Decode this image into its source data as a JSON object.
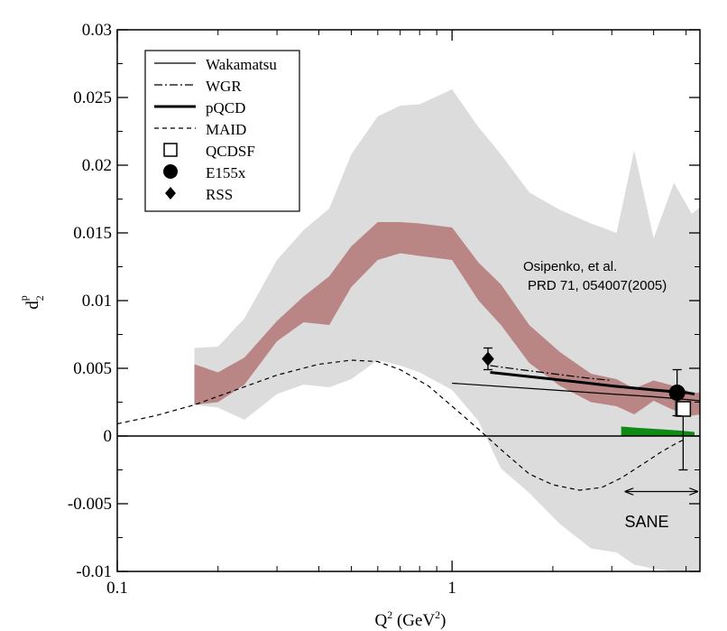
{
  "chart_data": {
    "type": "line",
    "x_scale": "log",
    "xlim": [
      0.1,
      5.5
    ],
    "ylim": [
      -0.01,
      0.03
    ],
    "xlabel": {
      "base": "Q",
      "sup": "2",
      "unit_open": " (GeV",
      "unit_sup": "2",
      "unit_close": ")"
    },
    "ylabel": {
      "base": "d",
      "sub": "2",
      "sup": "p"
    },
    "x_ticks": [
      {
        "value": 0.1,
        "label": "0.1"
      },
      {
        "value": 1,
        "label": "1"
      }
    ],
    "y_ticks": [
      {
        "value": 0.03,
        "label": "0.03"
      },
      {
        "value": 0.025,
        "label": "0.025"
      },
      {
        "value": 0.02,
        "label": "0.02"
      },
      {
        "value": 0.015,
        "label": "0.015"
      },
      {
        "value": 0.01,
        "label": "0.01"
      },
      {
        "value": 0.005,
        "label": "0.005"
      },
      {
        "value": 0,
        "label": "0"
      },
      {
        "value": -0.005,
        "label": "-0.005"
      },
      {
        "value": -0.01,
        "label": "-0.01"
      }
    ],
    "colors": {
      "grey_band": "#dcdcdc",
      "red_band": "#b98585",
      "green_band": "#0f8a14",
      "line": "#000000"
    },
    "grey_band": {
      "x": [
        0.17,
        0.2,
        0.24,
        0.3,
        0.36,
        0.43,
        0.5,
        0.6,
        0.7,
        0.8,
        1.0,
        1.2,
        1.4,
        1.7,
        2.1,
        2.6,
        3.1,
        3.5,
        4.0,
        4.6,
        5.2,
        5.5
      ],
      "upper": [
        0.0065,
        0.0066,
        0.0087,
        0.013,
        0.0152,
        0.0168,
        0.0208,
        0.0236,
        0.0244,
        0.0245,
        0.0256,
        0.0228,
        0.0208,
        0.018,
        0.0167,
        0.0157,
        0.015,
        0.0211,
        0.0146,
        0.0187,
        0.0164,
        0.0169
      ],
      "lower": [
        0.0023,
        0.0021,
        0.0012,
        0.0031,
        0.0038,
        0.0036,
        0.0042,
        0.0056,
        0.0052,
        0.0047,
        0.0034,
        0.0011,
        -0.0024,
        -0.0042,
        -0.0065,
        -0.0083,
        -0.0086,
        -0.0095,
        -0.0098,
        -0.01,
        -0.01,
        -0.01
      ]
    },
    "red_band": {
      "x": [
        0.17,
        0.2,
        0.24,
        0.3,
        0.36,
        0.43,
        0.5,
        0.6,
        0.7,
        0.8,
        1.0,
        1.2,
        1.4,
        1.7,
        2.1,
        2.6,
        3.1,
        3.5,
        4.0,
        4.6,
        5.2,
        5.5
      ],
      "upper": [
        0.0053,
        0.0047,
        0.0058,
        0.0085,
        0.0103,
        0.0118,
        0.014,
        0.0158,
        0.0158,
        0.0157,
        0.0154,
        0.0128,
        0.0112,
        0.0082,
        0.0062,
        0.0046,
        0.0042,
        0.0035,
        0.0041,
        0.0037,
        0.0032,
        0.0032
      ],
      "lower": [
        0.0023,
        0.0025,
        0.0038,
        0.007,
        0.0084,
        0.0082,
        0.011,
        0.013,
        0.0135,
        0.0133,
        0.013,
        0.01,
        0.0082,
        0.0054,
        0.0037,
        0.0025,
        0.0022,
        0.0016,
        0.0026,
        0.0019,
        0.0015,
        0.0016
      ]
    },
    "green_band": {
      "x": [
        3.2,
        3.6,
        4.2,
        4.8,
        5.3
      ],
      "upper": [
        0.0007,
        0.0006,
        0.0005,
        0.0004,
        0.0003
      ],
      "lower": [
        0.0,
        0.0,
        0.0,
        0.0,
        0.0
      ]
    },
    "series": [
      {
        "name": "Wakamatsu",
        "style": "thin",
        "x": [
          1.0,
          2.0,
          3.0,
          4.0,
          5.0,
          5.5
        ],
        "y": [
          0.0039,
          0.0034,
          0.0031,
          0.0029,
          0.0027,
          0.0026
        ]
      },
      {
        "name": "WGR",
        "style": "dashdot",
        "x": [
          1.3,
          1.6,
          2.0,
          2.5,
          3.0
        ],
        "y": [
          0.0052,
          0.0049,
          0.0046,
          0.0043,
          0.0041
        ]
      },
      {
        "name": "pQCD",
        "style": "thick",
        "x": [
          1.3,
          2.0,
          3.0,
          4.0,
          5.0,
          5.3
        ],
        "y": [
          0.0047,
          0.0042,
          0.0037,
          0.0034,
          0.0032,
          0.0031
        ]
      },
      {
        "name": "MAID",
        "style": "dashed",
        "x": [
          0.1,
          0.13,
          0.17,
          0.22,
          0.3,
          0.4,
          0.5,
          0.6,
          0.7,
          0.85,
          1.0,
          1.2,
          1.4,
          1.7,
          2.0,
          2.4,
          2.8,
          3.2,
          3.7,
          4.2,
          4.7,
          4.9
        ],
        "y": [
          0.0009,
          0.0015,
          0.0023,
          0.0033,
          0.0045,
          0.0053,
          0.0056,
          0.0055,
          0.0049,
          0.0037,
          0.0022,
          0.0005,
          -0.001,
          -0.0028,
          -0.0036,
          -0.004,
          -0.0038,
          -0.0031,
          -0.0021,
          -0.0012,
          -0.0005,
          -0.0003
        ]
      }
    ],
    "points": [
      {
        "name": "QCDSF",
        "marker": "open-square",
        "x": 4.9,
        "y": 0.002,
        "err_low": 0.0045,
        "err_high": 0.0
      },
      {
        "name": "E155x",
        "marker": "filled-circle",
        "x": 4.7,
        "y": 0.0032,
        "err_low": 0.0017,
        "err_high": 0.0017
      },
      {
        "name": "RSS",
        "marker": "filled-diamond",
        "x": 1.28,
        "y": 0.0057,
        "err_low": 0.0008,
        "err_high": 0.0008
      }
    ],
    "legend": {
      "placement": "top-left",
      "entries": [
        {
          "label": "Wakamatsu",
          "symbol": "thin"
        },
        {
          "label": "WGR",
          "symbol": "dashdot"
        },
        {
          "label": "pQCD",
          "symbol": "thick"
        },
        {
          "label": "MAID",
          "symbol": "dashed"
        },
        {
          "label": "QCDSF",
          "symbol": "open-square"
        },
        {
          "label": "E155x",
          "symbol": "filled-circle"
        },
        {
          "label": "RSS",
          "symbol": "filled-diamond"
        }
      ]
    },
    "annotations": {
      "osipenko_line1": "Osipenko, et al.",
      "osipenko_line2": "PRD 71, 054007(2005)",
      "sane_label": "SANE",
      "sane_range": [
        3.3,
        5.4
      ],
      "sane_y": -0.0041
    }
  }
}
